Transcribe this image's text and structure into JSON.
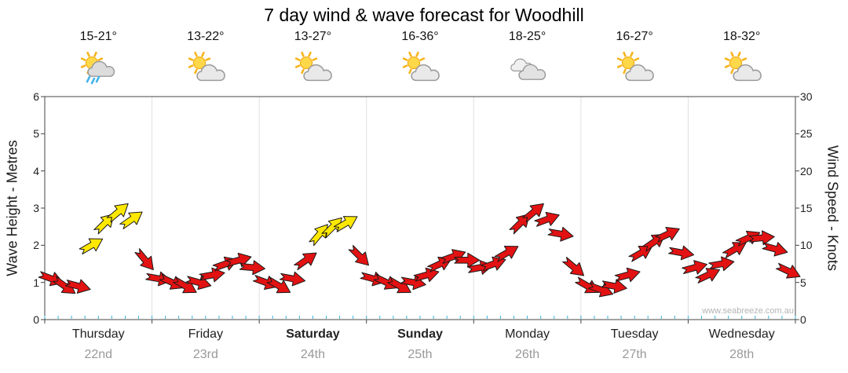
{
  "title": "7 day wind & wave forecast for Woodhill",
  "watermark": "www.seabreeze.com.au",
  "days": [
    {
      "name": "Thursday",
      "date": "22nd",
      "temp": "15-21°",
      "icon": "sun-cloud-rain",
      "bold": false
    },
    {
      "name": "Friday",
      "date": "23rd",
      "temp": "13-22°",
      "icon": "sun-cloud",
      "bold": false
    },
    {
      "name": "Saturday",
      "date": "24th",
      "temp": "13-27°",
      "icon": "sun-cloud",
      "bold": true
    },
    {
      "name": "Sunday",
      "date": "25th",
      "temp": "16-36°",
      "icon": "sun-cloud",
      "bold": true
    },
    {
      "name": "Monday",
      "date": "26th",
      "temp": "18-25°",
      "icon": "cloud",
      "bold": false
    },
    {
      "name": "Tuesday",
      "date": "27th",
      "temp": "16-27°",
      "icon": "sun-cloud",
      "bold": false
    },
    {
      "name": "Wednesday",
      "date": "28th",
      "temp": "18-32°",
      "icon": "sun-cloud",
      "bold": false
    }
  ],
  "chart_data": {
    "type": "wind-arrows",
    "title": "7 day wind & wave forecast for Woodhill",
    "left_axis": {
      "label": "Wave Height - Metres",
      "ticks": [
        0,
        1,
        2,
        3,
        4,
        5,
        6
      ],
      "min": 0,
      "max": 6
    },
    "right_axis": {
      "label": "Wind Speed - Knots",
      "ticks": [
        0,
        5,
        10,
        15,
        20,
        25,
        30
      ],
      "min": 0,
      "max": 30
    },
    "categories": [
      "Thursday 22nd",
      "Friday 23rd",
      "Saturday 24th",
      "Sunday 25th",
      "Monday 26th",
      "Tuesday 27th",
      "Wednesday 28th"
    ],
    "points_per_day": 8,
    "series": [
      {
        "name": "Wind speed",
        "unit": "knots",
        "values": [
          5.5,
          4.5,
          4.5,
          10,
          13,
          14.5,
          13.5,
          8,
          5.5,
          5,
          4.5,
          5,
          6,
          7.5,
          8,
          7,
          5,
          4.5,
          5.5,
          8,
          11.5,
          12.5,
          13,
          8.5,
          5.5,
          5,
          4.5,
          5,
          6,
          7.5,
          8.5,
          8,
          7,
          7.5,
          9,
          13,
          14.5,
          13.5,
          11.5,
          7,
          4.5,
          4,
          4.5,
          6,
          9,
          10.5,
          11.5,
          9,
          7,
          6,
          7.5,
          9.5,
          11,
          11,
          9.5,
          6.5
        ]
      }
    ],
    "arrow_colors": [
      "r",
      "r",
      "r",
      "y",
      "y",
      "y",
      "y",
      "r",
      "r",
      "r",
      "r",
      "r",
      "r",
      "r",
      "r",
      "r",
      "r",
      "r",
      "r",
      "r",
      "y",
      "y",
      "y",
      "r",
      "r",
      "r",
      "r",
      "r",
      "r",
      "r",
      "r",
      "r",
      "r",
      "r",
      "r",
      "r",
      "r",
      "r",
      "r",
      "r",
      "r",
      "r",
      "r",
      "r",
      "r",
      "r",
      "r",
      "r",
      "r",
      "r",
      "r",
      "r",
      "r",
      "r",
      "r",
      "r"
    ],
    "arrow_dirs_deg": [
      20,
      35,
      15,
      -30,
      -45,
      -40,
      -35,
      50,
      10,
      25,
      30,
      15,
      -10,
      -20,
      -15,
      5,
      20,
      30,
      10,
      -35,
      -50,
      -45,
      -30,
      45,
      15,
      25,
      30,
      10,
      -15,
      -25,
      -20,
      0,
      -10,
      -20,
      -30,
      -45,
      -40,
      -20,
      10,
      40,
      30,
      20,
      10,
      -15,
      -30,
      -35,
      -25,
      10,
      -15,
      -25,
      -10,
      -30,
      -25,
      -5,
      15,
      25
    ],
    "colors": {
      "normal": "#e31212",
      "strong": "#ffe800",
      "minor_tick": "#35b2e0",
      "axis": "#444444",
      "grid": "#e0e0e0"
    },
    "legend_position": "none",
    "grid": "vertical day boundaries only"
  }
}
